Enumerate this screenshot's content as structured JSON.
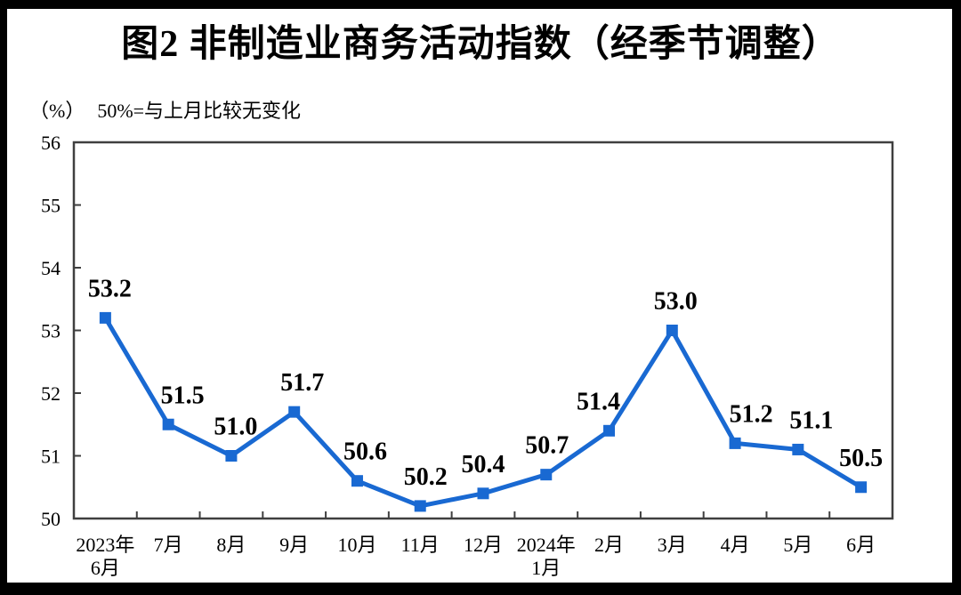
{
  "title": "图2 非制造业商务活动指数（经季节调整）",
  "subtitle": {
    "unit": "（%）",
    "note": "50%=与上月比较无变化"
  },
  "chart_data": {
    "type": "line",
    "title": "图2 非制造业商务活动指数（经季节调整）",
    "unit_label": "（%）",
    "annotation": "50%=与上月比较无变化",
    "categories": [
      "2023年\n6月",
      "7月",
      "8月",
      "9月",
      "10月",
      "11月",
      "12月",
      "2024年\n1月",
      "2月",
      "3月",
      "4月",
      "5月",
      "6月"
    ],
    "values": [
      53.2,
      51.5,
      51.0,
      51.7,
      50.6,
      50.2,
      50.4,
      50.7,
      51.4,
      53.0,
      51.2,
      51.1,
      50.5
    ],
    "ylim": [
      50,
      56
    ],
    "y_ticks": [
      50,
      51,
      52,
      53,
      54,
      55,
      56
    ],
    "grid": false,
    "legend": "none",
    "marker": "square",
    "data_labels": true
  },
  "colors": {
    "line": "#1969d2",
    "axis": "#3f3f3f",
    "text": "#000000",
    "frame": "#000000",
    "background": "#ffffff"
  }
}
